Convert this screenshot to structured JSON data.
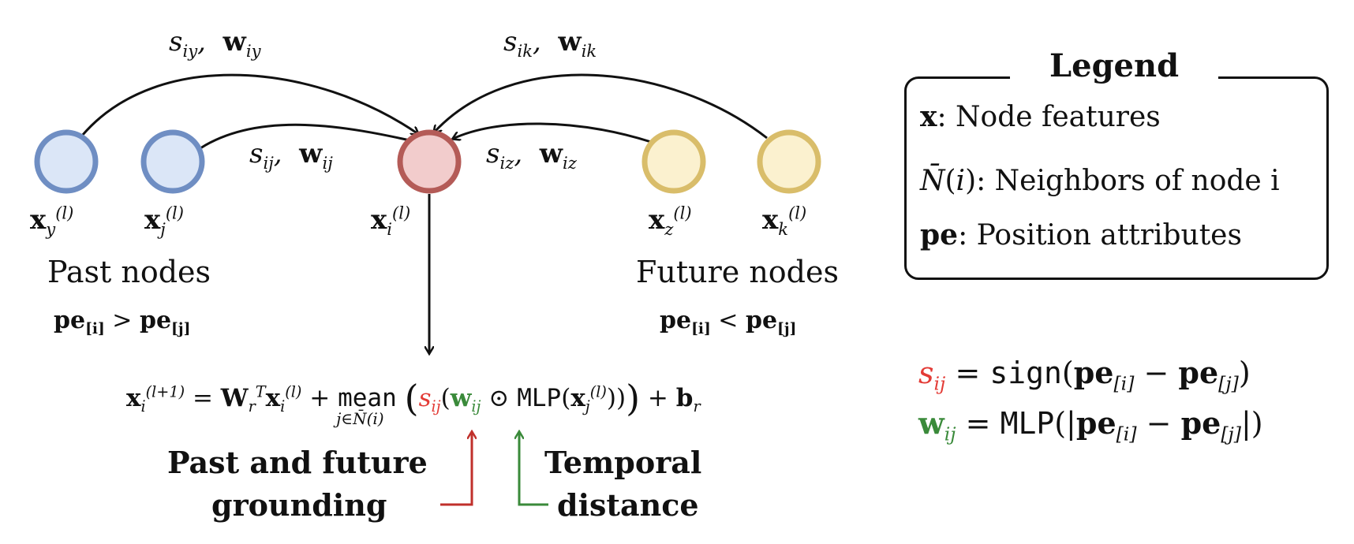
{
  "labels": {
    "past_nodes": "Past nodes",
    "future_nodes": "Future nodes",
    "past_future_grounding_line1": "Past and future",
    "past_future_grounding_line2": "grounding",
    "temporal_distance_line1": "Temporal",
    "temporal_distance_line2": "distance"
  },
  "legend": {
    "title": "Legend",
    "item_x_text": ": Node features",
    "item_n_text": ": Neighbors of node i",
    "item_pe_text": ": Position attributes"
  },
  "colors": {
    "past_node_fill": "#dbe6f7",
    "past_node_stroke": "#6f8ec3",
    "center_node_fill": "#f2cccc",
    "center_node_stroke": "#b45b57",
    "future_node_fill": "#fbf1cf",
    "future_node_stroke": "#d9bd6a",
    "sign_accent": "#e33b36",
    "weight_accent": "#3a8a3a",
    "arrow_red": "#c0302b",
    "arrow_green": "#3a8a3a"
  }
}
